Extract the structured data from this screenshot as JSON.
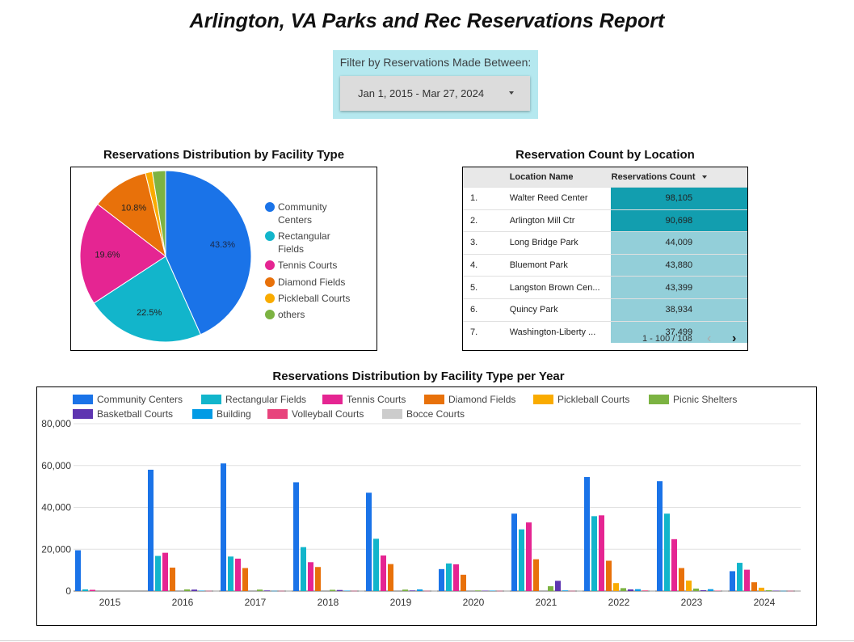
{
  "header": {
    "title": "Arlington, VA Parks and Rec Reservations Report"
  },
  "filter": {
    "label": "Filter by Reservations Made Between:",
    "value": "Jan 1, 2015 - Mar 27, 2024"
  },
  "pie": {
    "title": "Reservations Distribution by Facility Type",
    "legend": [
      "Community Centers",
      "Rectangular Fields",
      "Tennis Courts",
      "Diamond Fields",
      "Pickleball Courts",
      "others"
    ],
    "labels": [
      "43.3%",
      "22.5%",
      "19.6%",
      "10.8%"
    ]
  },
  "table": {
    "title": "Reservation Count by Location",
    "col_location": "Location Name",
    "col_count": "Reservations Count",
    "rows": [
      {
        "num": "1.",
        "name": "Walter Reed Center",
        "count": "98,105"
      },
      {
        "num": "2.",
        "name": "Arlington Mill Ctr",
        "count": "90,698"
      },
      {
        "num": "3.",
        "name": "Long Bridge Park",
        "count": "44,009"
      },
      {
        "num": "4.",
        "name": "Bluemont Park",
        "count": "43,880"
      },
      {
        "num": "5.",
        "name": "Langston Brown Cen...",
        "count": "43,399"
      },
      {
        "num": "6.",
        "name": "Quincy Park",
        "count": "38,934"
      },
      {
        "num": "7.",
        "name": "Washington-Liberty ...",
        "count": "37,499"
      }
    ],
    "pagination": "1 - 100 / 108",
    "prev_icon": "chevron-left-icon",
    "next_icon": "chevron-right-icon"
  },
  "colors": {
    "community": "#1a73e8",
    "rectangular": "#12b5cb",
    "tennis": "#e52592",
    "diamond": "#e8710a",
    "pickleball": "#f9ab00",
    "picnic": "#7cb342",
    "basketball": "#5e35b1",
    "building": "#039be5",
    "volleyball": "#e8437c",
    "bocce": "#cccccc",
    "heat_dark": "#129eaf",
    "heat_light": "#93cfd9"
  },
  "chart_data": [
    {
      "type": "pie",
      "title": "Reservations Distribution by Facility Type",
      "categories": [
        "Community Centers",
        "Rectangular Fields",
        "Tennis Courts",
        "Diamond Fields",
        "Pickleball Courts",
        "others"
      ],
      "values": [
        43.3,
        22.5,
        19.6,
        10.8,
        1.3,
        2.5
      ],
      "legend_position": "right"
    },
    {
      "type": "bar",
      "title": "Reservations Distribution by Facility Type per Year",
      "categories": [
        "2015",
        "2016",
        "2017",
        "2018",
        "2019",
        "2020",
        "2021",
        "2022",
        "2023",
        "2024"
      ],
      "ylim": [
        0,
        80000
      ],
      "yticks": [
        "0",
        "20,000",
        "40,000",
        "60,000",
        "80,000"
      ],
      "grid": true,
      "legend_position": "top",
      "series": [
        {
          "name": "Community Centers",
          "values": [
            19500,
            58000,
            61000,
            52000,
            47000,
            10500,
            37000,
            54500,
            52500,
            9500
          ]
        },
        {
          "name": "Rectangular Fields",
          "values": [
            800,
            16800,
            16500,
            21000,
            25000,
            13200,
            29500,
            35800,
            37000,
            13500
          ]
        },
        {
          "name": "Tennis Courts",
          "values": [
            600,
            18300,
            15500,
            13800,
            17000,
            12800,
            32800,
            36200,
            24800,
            10200
          ]
        },
        {
          "name": "Diamond Fields",
          "values": [
            0,
            11200,
            11000,
            11500,
            12900,
            7800,
            15200,
            14500,
            11000,
            4200
          ]
        },
        {
          "name": "Pickleball Courts",
          "values": [
            0,
            0,
            0,
            0,
            0,
            0,
            0,
            3800,
            5000,
            1600
          ]
        },
        {
          "name": "Picnic Shelters",
          "values": [
            0,
            800,
            700,
            600,
            700,
            300,
            2300,
            1400,
            1200,
            400
          ]
        },
        {
          "name": "Basketball Courts",
          "values": [
            0,
            700,
            300,
            500,
            300,
            200,
            4900,
            800,
            400,
            200
          ]
        },
        {
          "name": "Building",
          "values": [
            0,
            200,
            100,
            200,
            800,
            200,
            300,
            900,
            900,
            100
          ]
        },
        {
          "name": "Volleyball Courts",
          "values": [
            0,
            100,
            100,
            100,
            100,
            100,
            100,
            300,
            200,
            100
          ]
        },
        {
          "name": "Bocce Courts",
          "values": [
            0,
            100,
            100,
            100,
            100,
            100,
            100,
            100,
            100,
            100
          ]
        }
      ]
    }
  ]
}
